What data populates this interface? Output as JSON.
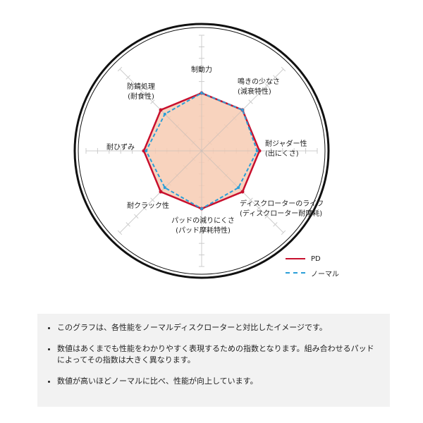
{
  "chart_data": {
    "type": "radar",
    "axes": [
      "制動力",
      "鳴きの少なさ(減衰特性)",
      "耐ジャダー性(出にくさ)",
      "ディスクローターのライフ(ディスクローター耐摩耗)",
      "パッドの減りにくさ(パッド摩耗特性)",
      "耐クラック性",
      "耐ひずみ",
      "防錆処理(耐食性)"
    ],
    "range": [
      0,
      10
    ],
    "series": [
      {
        "name": "PD",
        "color": "#c8102e",
        "style": "solid",
        "fill": "#f7cbb3",
        "values": [
          5,
          5,
          5,
          5,
          5,
          5,
          5,
          5
        ]
      },
      {
        "name": "ノーマル",
        "color": "#2a9fd8",
        "style": "dashed",
        "values": [
          5,
          5,
          4.8,
          4.5,
          5,
          4.5,
          4.8,
          4.5
        ]
      }
    ],
    "legend": "bottom-right",
    "labels": {
      "a0": "制動力",
      "a1": [
        "鳴きの少なさ",
        "(減衰特性)"
      ],
      "a2": [
        "耐ジャダー性",
        "(出にくさ)"
      ],
      "a3": [
        "ディスクローターのライフ",
        "(ディスクローター耐摩耗)"
      ],
      "a4": [
        "パッドの減りにくさ",
        "(パッド摩耗特性)"
      ],
      "a5": "耐クラック性",
      "a6": "耐ひずみ",
      "a7": [
        "防錆処理",
        "(耐食性)"
      ]
    }
  },
  "notes": [
    "このグラフは、各性能をノーマルディスクローターと対比したイメージです。",
    "数値はあくまでも性能をわかりやすく表現するための指数となります。組み合わせるパッドによってその指数は大きく異なります。",
    "数値が高いほどノーマルに比べ、性能が向上しています。"
  ]
}
